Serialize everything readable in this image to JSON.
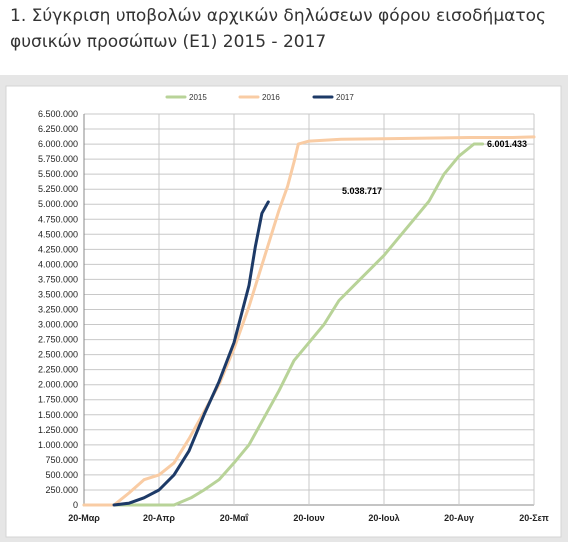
{
  "header": {
    "title": "1. Σύγκριση υποβολών αρχικών δηλώσεων φόρου εισοδήματος φυσικών προσώπων (Ε1) 2015 - 2017"
  },
  "chart_data": {
    "type": "line",
    "title": "",
    "xlabel": "",
    "ylabel": "",
    "x_ticks": [
      "20-Μαρ",
      "20-Απρ",
      "20-Μαΐ",
      "20-Ιουν",
      "20-Ιουλ",
      "20-Αυγ",
      "20-Σεπ"
    ],
    "ylim": [
      0,
      6500000
    ],
    "y_ticks": [
      "0",
      "250.000",
      "500.000",
      "750.000",
      "1.000.000",
      "1.250.000",
      "1.500.000",
      "1.750.000",
      "2.000.000",
      "2.250.000",
      "2.500.000",
      "2.750.000",
      "3.000.000",
      "3.250.000",
      "3.500.000",
      "3.750.000",
      "4.000.000",
      "4.250.000",
      "4.500.000",
      "4.750.000",
      "5.000.000",
      "5.250.000",
      "5.500.000",
      "5.750.000",
      "6.000.000",
      "6.250.000",
      "6.500.000"
    ],
    "grid": true,
    "legend_position": "top",
    "series": [
      {
        "name": "2015",
        "color": "#b8d398",
        "x": [
          0,
          42,
          50,
          56,
          63,
          70,
          77,
          84,
          91,
          98,
          105,
          112,
          119,
          126,
          133,
          140,
          147,
          154,
          161,
          168,
          175,
          182,
          186
        ],
        "y": [
          0,
          0,
          120000,
          250000,
          420000,
          700000,
          1000000,
          1450000,
          1900000,
          2400000,
          2700000,
          3000000,
          3400000,
          3650000,
          3900000,
          4150000,
          4450000,
          4750000,
          5050000,
          5500000,
          5800000,
          6001433,
          6001433
        ]
      },
      {
        "name": "2016",
        "color": "#f9cca4",
        "x": [
          0,
          14,
          21,
          28,
          35,
          42,
          49,
          56,
          63,
          70,
          77,
          84,
          91,
          95,
          98,
          100,
          105,
          120,
          140,
          160,
          180,
          200,
          210
        ],
        "y": [
          0,
          0,
          200000,
          420000,
          500000,
          700000,
          1100000,
          1550000,
          2000000,
          2600000,
          3300000,
          4100000,
          4900000,
          5300000,
          5700000,
          6000000,
          6050000,
          6080000,
          6090000,
          6100000,
          6110000,
          6110000,
          6120000
        ]
      },
      {
        "name": "2017",
        "color": "#1d3a67",
        "x": [
          14,
          21,
          28,
          35,
          42,
          49,
          56,
          63,
          70,
          77,
          80,
          83,
          86
        ],
        "y": [
          0,
          30000,
          120000,
          250000,
          500000,
          900000,
          1500000,
          2050000,
          2700000,
          3650000,
          4300000,
          4850000,
          5038717
        ]
      }
    ],
    "annotations": [
      "6.001.433",
      "5.038.717"
    ]
  }
}
